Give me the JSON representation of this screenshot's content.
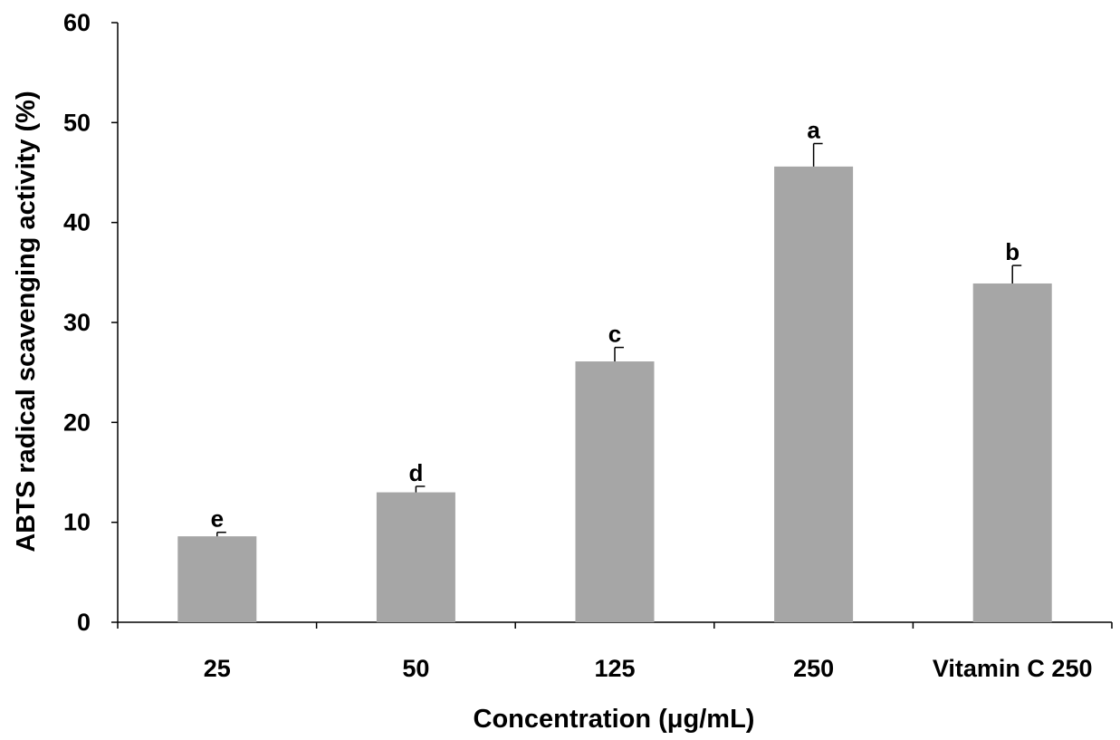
{
  "chart_data": {
    "type": "bar",
    "title": "",
    "xlabel": "Concentration (μg/mL)",
    "ylabel": "ABTS radical scavenging activity (%)",
    "categories": [
      "25",
      "50",
      "125",
      "250",
      "Vitamin C 250"
    ],
    "values": [
      8.6,
      13.0,
      26.1,
      45.6,
      33.9
    ],
    "error": [
      0.4,
      0.6,
      1.4,
      2.3,
      1.8
    ],
    "significance_labels": [
      "e",
      "d",
      "c",
      "a",
      "b"
    ],
    "ylim": [
      0,
      60
    ],
    "yticks": [
      "0",
      "10",
      "20",
      "30",
      "40",
      "50",
      "60"
    ],
    "bar_color": "#a6a6a6",
    "grid": false,
    "legend": "none"
  }
}
